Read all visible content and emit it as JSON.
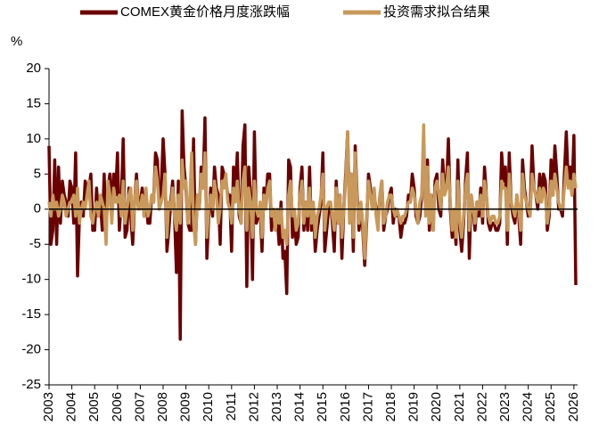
{
  "chart_data": {
    "type": "line",
    "y_label": "%",
    "categories": [
      "2003",
      null,
      null,
      null,
      null,
      null,
      null,
      null,
      null,
      null,
      null,
      null,
      "2004",
      null,
      null,
      null,
      null,
      null,
      null,
      null,
      null,
      null,
      null,
      null,
      "2005",
      null,
      null,
      null,
      null,
      null,
      null,
      null,
      null,
      null,
      null,
      null,
      "2006",
      null,
      null,
      null,
      null,
      null,
      null,
      null,
      null,
      null,
      null,
      null,
      "2007",
      null,
      null,
      null,
      null,
      null,
      null,
      null,
      null,
      null,
      null,
      null,
      "2008",
      null,
      null,
      null,
      null,
      null,
      null,
      null,
      null,
      null,
      null,
      null,
      "2009",
      null,
      null,
      null,
      null,
      null,
      null,
      null,
      null,
      null,
      null,
      null,
      "2010",
      null,
      null,
      null,
      null,
      null,
      null,
      null,
      null,
      null,
      null,
      null,
      "2011",
      null,
      null,
      null,
      null,
      null,
      null,
      null,
      null,
      null,
      null,
      null,
      "2012",
      null,
      null,
      null,
      null,
      null,
      null,
      null,
      null,
      null,
      null,
      null,
      "2013",
      null,
      null,
      null,
      null,
      null,
      null,
      null,
      null,
      null,
      null,
      null,
      "2014",
      null,
      null,
      null,
      null,
      null,
      null,
      null,
      null,
      null,
      null,
      null,
      "2015",
      null,
      null,
      null,
      null,
      null,
      null,
      null,
      null,
      null,
      null,
      null,
      "2016",
      null,
      null,
      null,
      null,
      null,
      null,
      null,
      null,
      null,
      null,
      null,
      "2017",
      null,
      null,
      null,
      null,
      null,
      null,
      null,
      null,
      null,
      null,
      null,
      "2018",
      null,
      null,
      null,
      null,
      null,
      null,
      null,
      null,
      null,
      null,
      null,
      "2019",
      null,
      null,
      null,
      null,
      null,
      null,
      null,
      null,
      null,
      null,
      null,
      "2020",
      null,
      null,
      null,
      null,
      null,
      null,
      null,
      null,
      null,
      null,
      null,
      "2021",
      null,
      null,
      null,
      null,
      null,
      null,
      null,
      null,
      null,
      null,
      null,
      "2022",
      null,
      null,
      null,
      null,
      null,
      null,
      null,
      null,
      null,
      null,
      null,
      "2023",
      null,
      null,
      null,
      null,
      null,
      null,
      null,
      null,
      null,
      null,
      null,
      "2024",
      null,
      null,
      null,
      null,
      null,
      null,
      null,
      null,
      null,
      null,
      null,
      "2025",
      null,
      null,
      null,
      null,
      null,
      null,
      null,
      null,
      null,
      null,
      null,
      "2026",
      null
    ],
    "series": [
      {
        "name": "COMEX黄金价格月度涨跌幅",
        "color": "#6b0000",
        "values": [
          9,
          -5,
          -3,
          7,
          -5,
          6,
          -2,
          4,
          2,
          1,
          -1,
          4,
          3,
          -2,
          8,
          -9.5,
          -1,
          1,
          -1,
          4,
          3,
          3,
          5,
          -3,
          -3,
          3,
          -1,
          1,
          -3,
          5,
          -3,
          3,
          5,
          -1,
          5,
          2,
          8,
          -3,
          1,
          10,
          -4,
          -3,
          3,
          -1,
          -5,
          1,
          5,
          0,
          1,
          3,
          -1,
          2,
          -2,
          -2,
          2,
          1,
          8,
          7,
          0,
          3,
          10,
          5,
          -6,
          -3,
          1,
          4,
          -1,
          -9,
          4,
          -18.5,
          14,
          6,
          3,
          -2,
          -3,
          -3,
          10,
          -5,
          2,
          0,
          6,
          3,
          13,
          -7,
          -1,
          3,
          -1,
          6,
          3,
          2,
          -5,
          6,
          5,
          4,
          2,
          2,
          -6,
          6,
          2,
          8,
          -1,
          -2,
          9,
          12,
          -11,
          6,
          2,
          -10,
          11,
          -2,
          -1,
          0,
          -6,
          3,
          1,
          5,
          5,
          -3,
          0,
          -2,
          -1,
          -5,
          1,
          -7,
          -6,
          -12,
          7,
          6,
          -4,
          -1,
          -5,
          -4,
          3,
          6,
          -3,
          1,
          -3,
          6,
          -3,
          0,
          -6,
          -3,
          -1,
          1,
          8,
          -6,
          -3,
          0,
          1,
          -2,
          -6,
          4,
          -2,
          2,
          -7,
          0,
          5,
          11,
          0,
          5,
          -6,
          9,
          2,
          -3,
          0,
          -3,
          -8,
          -2,
          5,
          3,
          0,
          2,
          0,
          -2,
          2,
          4,
          -3,
          -1,
          0,
          2,
          3,
          -2,
          0,
          -1,
          -1,
          -4,
          -2,
          -2,
          -1,
          2,
          1,
          5,
          3,
          -1,
          -2,
          -1,
          2,
          8,
          0,
          7,
          -3,
          2,
          -3,
          4,
          5,
          0,
          -1,
          7,
          3,
          3,
          10,
          0,
          -4,
          -1,
          -5,
          7,
          -3,
          -6,
          -2,
          4,
          8,
          -7,
          2,
          0,
          -3,
          1,
          -1,
          3,
          -2,
          6,
          2,
          -2,
          -3,
          -2,
          -2,
          -3,
          -3,
          -2,
          8,
          4,
          6,
          -5,
          8,
          1,
          -1,
          -2,
          2,
          -1,
          -5,
          7,
          3,
          1,
          -1,
          0,
          9,
          3,
          2,
          0,
          5,
          2,
          5,
          4,
          -3,
          -1,
          7,
          2,
          9,
          5,
          0,
          0,
          -1,
          5,
          11,
          4,
          6,
          2,
          10.5,
          -10.8
        ]
      },
      {
        "name": "投资需求拟合结果",
        "color": "#c8995a",
        "values": [
          1,
          -1,
          2,
          0,
          1,
          -1,
          0,
          2,
          1,
          -1,
          0,
          1,
          1,
          2,
          -1,
          3,
          -2,
          0,
          1,
          0,
          2,
          4,
          -1,
          -2,
          0,
          1,
          -1,
          2,
          1,
          0,
          -5,
          4,
          2,
          -2,
          3,
          1,
          1,
          2,
          -1,
          4,
          -2,
          0,
          2,
          3,
          -3,
          1,
          4,
          0,
          0,
          2,
          -1,
          3,
          -1,
          0,
          2,
          1,
          6,
          4,
          0,
          1,
          2,
          5,
          -4,
          1,
          0,
          3,
          -1,
          -3,
          2,
          -2,
          7,
          3,
          4,
          -2,
          1,
          8,
          -2,
          -5,
          2,
          0,
          5,
          3,
          8,
          -4,
          0,
          2,
          0,
          4,
          2,
          -2,
          0,
          4,
          3,
          5,
          1,
          0,
          -2,
          3,
          1,
          4,
          0,
          -2,
          4,
          6,
          -3,
          3,
          1,
          -4,
          4,
          0,
          -1,
          1,
          -4,
          2,
          0,
          3,
          4,
          -1,
          0,
          -3,
          0,
          -2,
          0,
          -4,
          -3,
          -5,
          2,
          4,
          -1,
          0,
          -3,
          -2,
          2,
          4,
          -2,
          1,
          -1,
          3,
          -2,
          1,
          -4,
          -1,
          0,
          2,
          5,
          -3,
          0,
          1,
          1,
          -1,
          -3,
          3,
          -2,
          2,
          -4,
          0,
          4,
          11,
          -2,
          5,
          -4,
          8,
          1,
          -2,
          1,
          -2,
          -7,
          -1,
          4,
          2,
          0,
          3,
          -1,
          -3,
          2,
          4,
          -2,
          -1,
          1,
          2,
          2,
          0,
          -1,
          0,
          -1,
          -2,
          -1,
          -1,
          0,
          1,
          1,
          3,
          2,
          0,
          -2,
          1,
          2,
          12,
          -1,
          6,
          -2,
          2,
          -3,
          3,
          4,
          2,
          0,
          5,
          2,
          3,
          6,
          1,
          -3,
          0,
          -4,
          4,
          -2,
          -4,
          -1,
          3,
          5,
          -3,
          2,
          0,
          -2,
          1,
          0,
          2,
          -1,
          4,
          2,
          -1,
          -2,
          -1,
          -1,
          -2,
          -2,
          -1,
          4,
          3,
          3,
          -3,
          5,
          1,
          0,
          -1,
          2,
          0,
          -3,
          5,
          2,
          1,
          0,
          -1,
          5,
          3,
          2,
          1,
          3,
          1,
          3,
          2,
          -2,
          0,
          4,
          2,
          5,
          3,
          1,
          0,
          0,
          3,
          6,
          3,
          4,
          2,
          5,
          3
        ]
      }
    ],
    "ylim": [
      -25,
      20
    ],
    "yticks": [
      -25,
      -20,
      -15,
      -10,
      -5,
      0,
      5,
      10,
      15,
      20
    ],
    "grid": false,
    "legend": "top"
  }
}
